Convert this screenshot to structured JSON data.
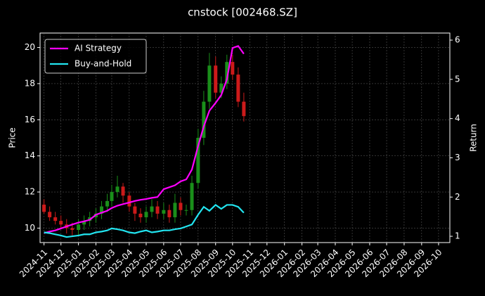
{
  "chart_data": {
    "type": "candlestick",
    "title": "cnstock [002468.SZ]",
    "ylabel": "Price",
    "y2label": "Return",
    "x": [
      "2024-11-01",
      "2024-11-11",
      "2024-11-21",
      "2024-12-01",
      "2024-12-11",
      "2024-12-21",
      "2025-01-01",
      "2025-01-11",
      "2025-01-21",
      "2025-02-01",
      "2025-02-11",
      "2025-02-21",
      "2025-03-01",
      "2025-03-11",
      "2025-03-21",
      "2025-04-01",
      "2025-04-11",
      "2025-04-21",
      "2025-05-01",
      "2025-05-11",
      "2025-05-21",
      "2025-06-01",
      "2025-06-11",
      "2025-06-21",
      "2025-07-01",
      "2025-07-11",
      "2025-07-21",
      "2025-08-01",
      "2025-08-11",
      "2025-08-21",
      "2025-09-01",
      "2025-09-11",
      "2025-09-21",
      "2025-10-01",
      "2025-10-11",
      "2025-10-21"
    ],
    "open": [
      11.3,
      10.9,
      10.6,
      10.4,
      10.2,
      10.0,
      9.9,
      10.2,
      10.4,
      10.6,
      10.8,
      11.2,
      11.5,
      12.0,
      12.3,
      11.8,
      11.2,
      10.8,
      10.6,
      10.9,
      11.2,
      10.8,
      11.0,
      10.6,
      11.4,
      11.0,
      11.0,
      12.5,
      15.0,
      17.0,
      19.0,
      17.5,
      18.0,
      19.2,
      18.5,
      17.0
    ],
    "high": [
      11.6,
      11.2,
      10.9,
      10.7,
      10.5,
      10.3,
      10.5,
      10.7,
      10.9,
      11.1,
      11.5,
      11.9,
      12.4,
      12.9,
      12.5,
      12.0,
      11.4,
      11.1,
      11.2,
      11.6,
      11.5,
      11.4,
      11.3,
      11.9,
      11.7,
      11.3,
      12.9,
      15.5,
      17.6,
      19.7,
      19.5,
      18.4,
      19.6,
      19.6,
      18.9,
      17.5
    ],
    "low": [
      10.8,
      10.4,
      10.2,
      10.0,
      9.7,
      9.6,
      9.6,
      9.9,
      10.1,
      10.3,
      10.5,
      10.9,
      11.2,
      11.7,
      11.4,
      10.9,
      10.4,
      10.3,
      10.3,
      10.6,
      10.5,
      10.5,
      10.3,
      10.3,
      10.7,
      10.7,
      10.7,
      12.2,
      14.6,
      16.6,
      17.2,
      17.2,
      17.7,
      18.2,
      16.7,
      15.9
    ],
    "close": [
      10.9,
      10.6,
      10.4,
      10.2,
      10.0,
      9.9,
      10.2,
      10.4,
      10.6,
      10.8,
      11.2,
      11.5,
      12.0,
      12.3,
      11.8,
      11.2,
      10.8,
      10.6,
      10.9,
      11.2,
      10.8,
      11.0,
      10.6,
      11.4,
      11.0,
      11.0,
      12.5,
      15.0,
      17.0,
      19.0,
      17.5,
      18.0,
      19.2,
      18.5,
      17.0,
      16.2
    ],
    "up_color": "#1a8f1a",
    "down_color": "#cc1a1a",
    "series": [
      {
        "name": "AI Strategy",
        "color": "#ff00ff",
        "axis": "y2",
        "values": [
          1.08,
          1.12,
          1.15,
          1.2,
          1.25,
          1.3,
          1.35,
          1.38,
          1.42,
          1.55,
          1.6,
          1.65,
          1.72,
          1.78,
          1.82,
          1.86,
          1.9,
          1.93,
          1.95,
          1.98,
          2.0,
          2.2,
          2.25,
          2.3,
          2.4,
          2.45,
          2.7,
          3.3,
          3.8,
          4.2,
          4.4,
          4.6,
          5.0,
          5.8,
          5.85,
          5.65
        ]
      },
      {
        "name": "Buy-and-Hold",
        "color": "#22e5f0",
        "axis": "y2",
        "values": [
          1.1,
          1.08,
          1.05,
          1.02,
          0.98,
          1.0,
          1.02,
          1.05,
          1.05,
          1.1,
          1.12,
          1.15,
          1.2,
          1.18,
          1.15,
          1.1,
          1.08,
          1.12,
          1.15,
          1.1,
          1.12,
          1.15,
          1.15,
          1.18,
          1.2,
          1.25,
          1.3,
          1.55,
          1.75,
          1.65,
          1.8,
          1.7,
          1.8,
          1.8,
          1.75,
          1.6
        ]
      }
    ],
    "xlim": [
      "2024-10-25",
      "2026-10-21"
    ],
    "xticks": [
      "2024-11",
      "2024-12",
      "2025-01",
      "2025-02",
      "2025-03",
      "2025-04",
      "2025-05",
      "2025-06",
      "2025-07",
      "2025-08",
      "2025-09",
      "2025-10",
      "2025-11",
      "2025-12",
      "2026-01",
      "2026-02",
      "2026-03",
      "2026-04",
      "2026-05",
      "2026-06",
      "2026-07",
      "2026-08",
      "2026-09",
      "2026-10"
    ],
    "ylim": [
      9.2,
      20.8
    ],
    "yticks": [
      10,
      12,
      14,
      16,
      18,
      20
    ],
    "y2lim": [
      0.84,
      6.18
    ],
    "y2ticks": [
      1,
      2,
      3,
      4,
      5,
      6
    ],
    "grid": true,
    "legend": "upper left"
  }
}
